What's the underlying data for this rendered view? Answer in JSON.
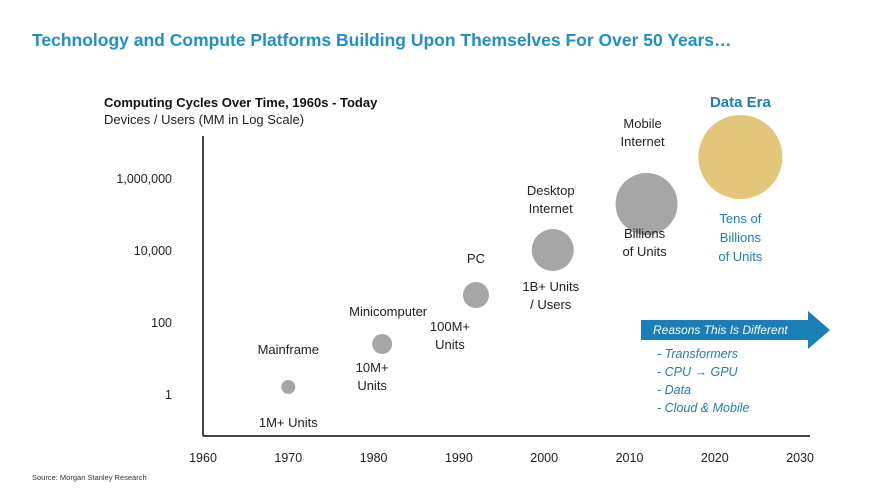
{
  "headline": "Technology and Compute Platforms Building Upon Themselves For Over 50 Years…",
  "source": "Source: Morgan Stanley Research",
  "colors": {
    "accent": "#1f8fc9",
    "bubble": "#a6a6a6",
    "data_era": "#e3c67a",
    "arrow": "#1b7fb7"
  },
  "chart_data": {
    "type": "scatter",
    "title": "Computing Cycles Over Time, 1960s - Today",
    "ylabel": "Devices / Users (MM in Log Scale)",
    "xlabel": "",
    "x_ticks": [
      "1960",
      "1970",
      "1980",
      "1990",
      "2000",
      "2010",
      "2020",
      "2030"
    ],
    "xlim": [
      1960,
      2030
    ],
    "y_scale": "log",
    "y_ticks": [
      "1,000,000",
      "10,000",
      "100",
      "1"
    ],
    "y_tick_values": [
      1000000,
      10000,
      100,
      1
    ],
    "ylim": [
      0.1,
      2000000
    ],
    "grid": false,
    "points": [
      {
        "name": "Mainframe",
        "x": 1970,
        "y": 1,
        "size": 1,
        "note": "1M+ Units"
      },
      {
        "name": "Minicomputer",
        "x": 1981,
        "y": 50,
        "size": 2,
        "note": "10M+\nUnits"
      },
      {
        "name": "PC",
        "x": 1992,
        "y": 300,
        "size": 3,
        "note": "100M+\nUnits"
      },
      {
        "name": "Desktop\nInternet",
        "x": 2001,
        "y": 10000,
        "size": 4,
        "note": "1B+ Units\n/ Users"
      },
      {
        "name": "Mobile\nInternet",
        "x": 2012,
        "y": 100000,
        "size": 5,
        "note": "Billions\nof Units"
      },
      {
        "name": "Data Era",
        "x": 2023,
        "y": 1000000,
        "size": 6,
        "note": "Tens of\nBillions\nof Units",
        "highlight": true
      }
    ]
  },
  "reasons": {
    "title": "Reasons This Is Different",
    "items": [
      "-  Transformers",
      "-  CPU → GPU",
      "-  Data",
      "-  Cloud & Mobile"
    ]
  }
}
